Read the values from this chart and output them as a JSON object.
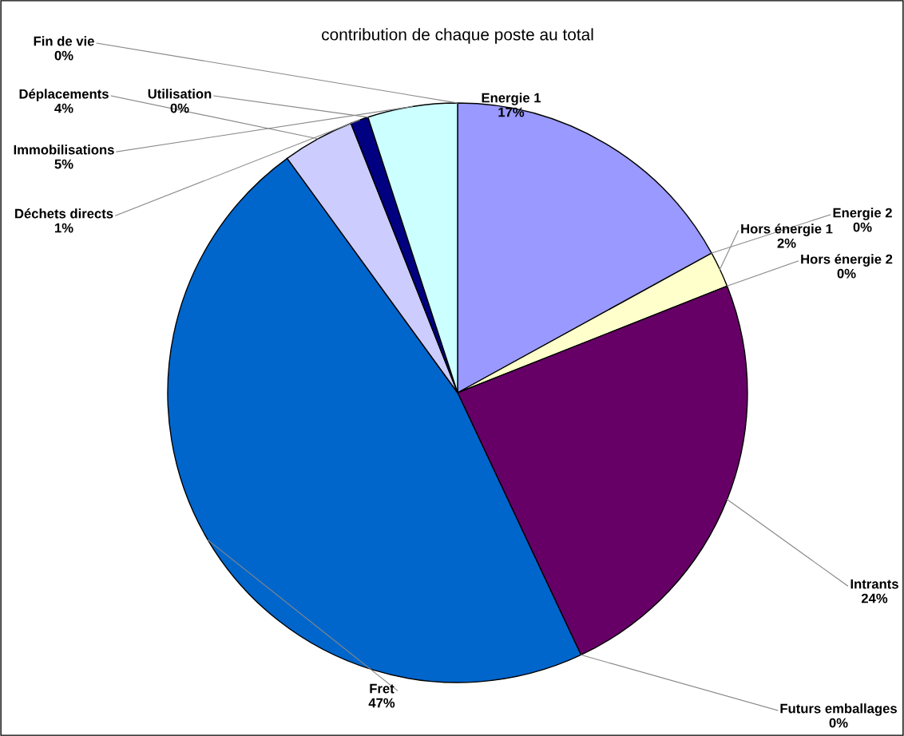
{
  "chart_data": {
    "type": "pie",
    "title": "contribution de chaque poste au total",
    "categories": [
      "Energie 1",
      "Energie 2",
      "Hors énergie 1",
      "Hors énergie 2",
      "Intrants",
      "Futurs emballages",
      "Fret",
      "Déplacements",
      "Déchets directs",
      "Utilisation",
      "Immobilisations",
      "Fin de vie"
    ],
    "values": [
      17,
      0,
      2,
      0,
      24,
      0,
      47,
      4,
      1,
      0,
      5,
      0
    ],
    "value_labels": [
      "17%",
      "0%",
      "2%",
      "0%",
      "24%",
      "0%",
      "47%",
      "4%",
      "1%",
      "0%",
      "5%",
      "0%"
    ],
    "colors": [
      "#9999ff",
      "#993366",
      "#ffffcc",
      "#ccffff",
      "#660066",
      "#ff8080",
      "#0066cc",
      "#ccccff",
      "#000080",
      "#ff00ff",
      "#ccffff",
      "#ffff00"
    ]
  }
}
